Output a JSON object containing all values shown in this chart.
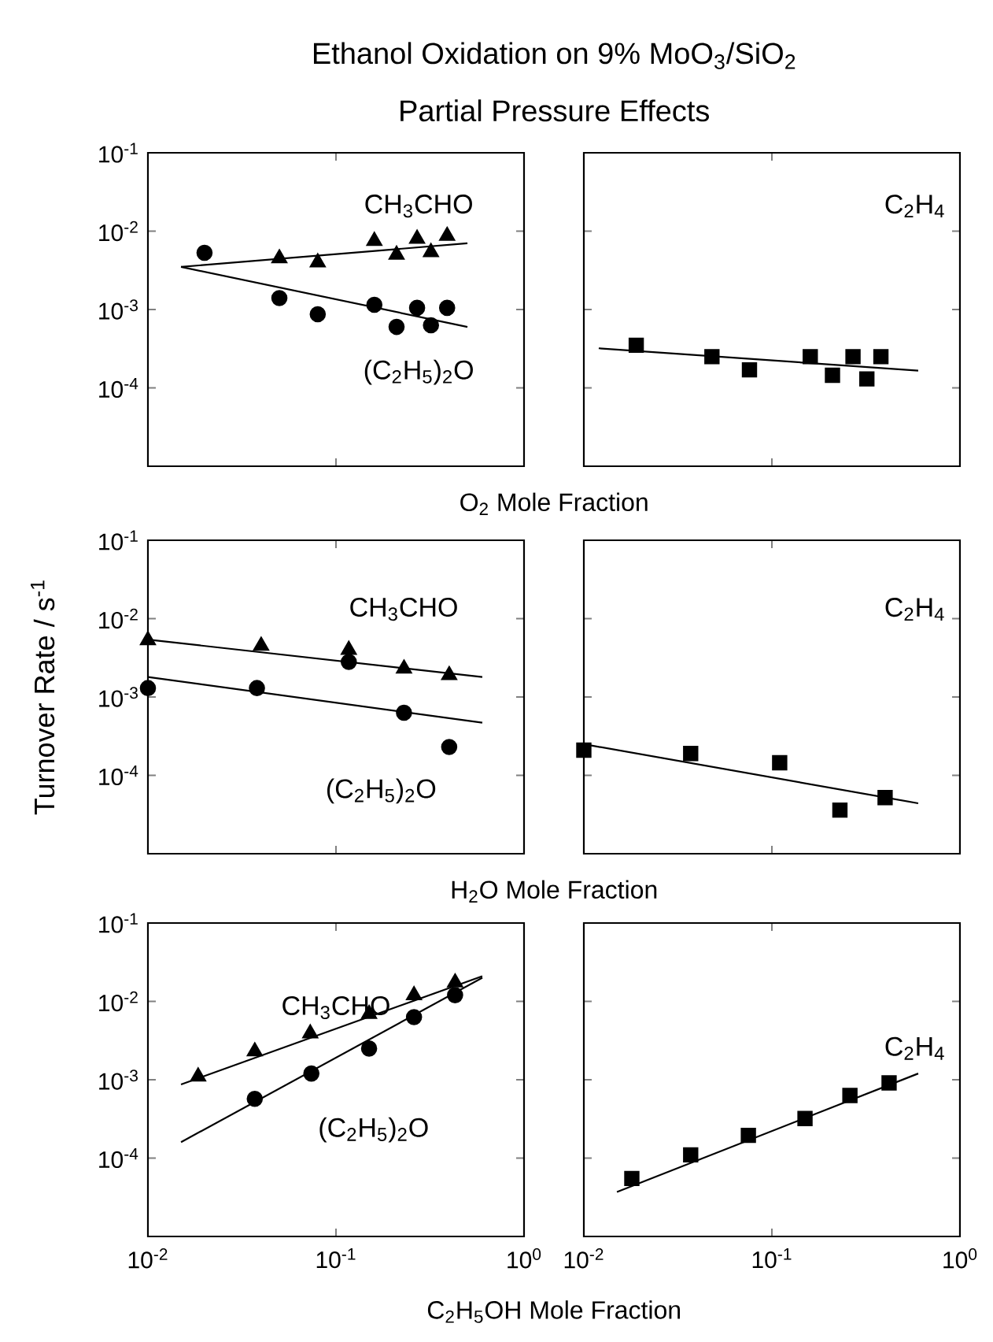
{
  "chart_data": [
    {
      "type": "scatter",
      "title": "Ethanol Oxidation on 9% MoO$_{3}$/SiO$_{2}$",
      "subtitle": "Partial Pressure Effects",
      "xlabel": "O$_{2}$ Mole Fraction",
      "log": "xy",
      "xlim": [
        0.01,
        1
      ],
      "ylim": [
        1e-05,
        0.1
      ],
      "tick_labels": "y",
      "xticks": [
        {
          "value": 0.01,
          "label": null
        },
        {
          "value": 0.1,
          "label": null
        },
        {
          "value": 1,
          "label": null
        }
      ],
      "yticks": [
        {
          "value": 1e-05,
          "label": null
        },
        {
          "value": 0.0001,
          "label": "10$^{-4}$"
        },
        {
          "value": 0.001,
          "label": "10$^{-3}$"
        },
        {
          "value": 0.01,
          "label": "10$^{-2}$"
        },
        {
          "value": 0.1,
          "label": "10$^{-1}$"
        }
      ],
      "series": [
        {
          "name": "CH$_{3}$CHO",
          "marker": "triangle",
          "color": "#000000",
          "x": [
            0.05,
            0.08,
            0.16,
            0.21,
            0.27,
            0.32,
            0.39
          ],
          "values": [
            0.0045,
            0.004,
            0.0075,
            0.005,
            0.008,
            0.0054,
            0.0087
          ]
        },
        {
          "name": "(C$_{2}$H$_{5}$)$_{2}$O",
          "marker": "circle",
          "color": "#000000",
          "x": [
            0.02,
            0.05,
            0.08,
            0.16,
            0.21,
            0.27,
            0.32,
            0.39
          ],
          "values": [
            0.0053,
            0.0014,
            0.00087,
            0.00115,
            0.0006,
            0.00105,
            0.00063,
            0.00105
          ]
        },
        {
          "type": "line",
          "color": "#000000",
          "x": [
            0.015,
            0.5
          ],
          "values": [
            0.0035,
            0.007
          ]
        },
        {
          "type": "line",
          "color": "#000000",
          "x": [
            0.015,
            0.5
          ],
          "values": [
            0.0035,
            0.0006
          ]
        }
      ]
    },
    {
      "type": "scatter",
      "log": "xy",
      "xlim": [
        0.01,
        1
      ],
      "ylim": [
        1e-05,
        0.1
      ],
      "tick_labels": false,
      "xticks": [
        {
          "value": 0.01,
          "label": null
        },
        {
          "value": 0.1,
          "label": null
        },
        {
          "value": 1,
          "label": null
        }
      ],
      "yticks": [
        {
          "value": 1e-05,
          "label": null
        },
        {
          "value": 0.0001,
          "label": null
        },
        {
          "value": 0.001,
          "label": null
        },
        {
          "value": 0.01,
          "label": null
        },
        {
          "value": 0.1,
          "label": null
        }
      ],
      "series": [
        {
          "name": "C$_{2}$H$_{4}$",
          "marker": "square",
          "color": "#000000",
          "x": [
            0.019,
            0.048,
            0.076,
            0.16,
            0.21,
            0.27,
            0.32,
            0.38
          ],
          "values": [
            0.00035,
            0.00025,
            0.00017,
            0.00025,
            0.000145,
            0.00025,
            0.00013,
            0.00025
          ]
        },
        {
          "type": "line",
          "color": "#000000",
          "x": [
            0.012,
            0.6
          ],
          "values": [
            0.00032,
            0.000166
          ]
        }
      ]
    },
    {
      "type": "scatter",
      "xlabel": "H$_{2}$O Mole Fraction",
      "ylabel": "Turnover Rate / s$^{-1}$",
      "log": "xy",
      "xlim": [
        0.01,
        1
      ],
      "ylim": [
        1e-05,
        0.1
      ],
      "tick_labels": "y",
      "xticks": [
        {
          "value": 0.01,
          "label": null
        },
        {
          "value": 0.1,
          "label": null
        },
        {
          "value": 1,
          "label": null
        }
      ],
      "yticks": [
        {
          "value": 1e-05,
          "label": null
        },
        {
          "value": 0.0001,
          "label": "10$^{-4}$"
        },
        {
          "value": 0.001,
          "label": "10$^{-3}$"
        },
        {
          "value": 0.01,
          "label": "10$^{-2}$"
        },
        {
          "value": 0.1,
          "label": "10$^{-1}$"
        }
      ],
      "series": [
        {
          "name": "CH$_{3}$CHO",
          "marker": "triangle",
          "color": "#000000",
          "x": [
            0.01,
            0.04,
            0.117,
            0.23,
            0.4
          ],
          "values": [
            0.0053,
            0.0045,
            0.004,
            0.0023,
            0.0019
          ]
        },
        {
          "name": "(C$_{2}$H$_{5}$)$_{2}$O",
          "marker": "circle",
          "color": "#000000",
          "x": [
            0.01,
            0.038,
            0.117,
            0.23,
            0.4
          ],
          "values": [
            0.0013,
            0.0013,
            0.0028,
            0.00063,
            0.00023
          ]
        },
        {
          "type": "line",
          "color": "#000000",
          "x": [
            0.01,
            0.6
          ],
          "values": [
            0.0054,
            0.0018
          ]
        },
        {
          "type": "line",
          "color": "#000000",
          "x": [
            0.01,
            0.6
          ],
          "values": [
            0.0018,
            0.00047
          ]
        }
      ]
    },
    {
      "type": "scatter",
      "log": "xy",
      "xlim": [
        0.01,
        1
      ],
      "ylim": [
        1e-05,
        0.1
      ],
      "tick_labels": false,
      "xticks": [
        {
          "value": 0.01,
          "label": null
        },
        {
          "value": 0.1,
          "label": null
        },
        {
          "value": 1,
          "label": null
        }
      ],
      "yticks": [
        {
          "value": 1e-05,
          "label": null
        },
        {
          "value": 0.0001,
          "label": null
        },
        {
          "value": 0.001,
          "label": null
        },
        {
          "value": 0.01,
          "label": null
        },
        {
          "value": 0.1,
          "label": null
        }
      ],
      "series": [
        {
          "name": "C$_{2}$H$_{4}$",
          "marker": "square",
          "color": "#000000",
          "x": [
            0.01,
            0.037,
            0.11,
            0.23,
            0.4
          ],
          "values": [
            0.00021,
            0.00019,
            0.000145,
            3.6e-05,
            5.2e-05
          ]
        },
        {
          "type": "line",
          "color": "#000000",
          "x": [
            0.01,
            0.6
          ],
          "values": [
            0.00025,
            4.4e-05
          ]
        }
      ]
    },
    {
      "type": "scatter",
      "xlabel": "C$_{2}$H$_{5}$OH Mole Fraction",
      "log": "xy",
      "xlim": [
        0.01,
        1
      ],
      "ylim": [
        1e-05,
        0.1
      ],
      "xticks": [
        {
          "value": 0.01,
          "label": "10$^{-2}$"
        },
        {
          "value": 0.1,
          "label": "10$^{-1}$"
        },
        {
          "value": 1,
          "label": "10$^{0}$"
        }
      ],
      "yticks": [
        {
          "value": 1e-05,
          "label": null
        },
        {
          "value": 0.0001,
          "label": "10$^{-4}$"
        },
        {
          "value": 0.001,
          "label": "10$^{-3}$"
        },
        {
          "value": 0.01,
          "label": "10$^{-2}$"
        },
        {
          "value": 0.1,
          "label": "10$^{-1}$"
        }
      ],
      "series": [
        {
          "name": "CH$_{3}$CHO",
          "marker": "triangle",
          "color": "#000000",
          "x": [
            0.0185,
            0.037,
            0.073,
            0.15,
            0.26,
            0.43
          ],
          "values": [
            0.0011,
            0.0023,
            0.0039,
            0.0069,
            0.012,
            0.0174
          ]
        },
        {
          "name": "(C$_{2}$H$_{5}$)$_{2}$O",
          "marker": "circle",
          "color": "#000000",
          "x": [
            0.037,
            0.074,
            0.15,
            0.26,
            0.43
          ],
          "values": [
            0.00057,
            0.0012,
            0.0025,
            0.0063,
            0.012
          ]
        },
        {
          "type": "line",
          "color": "#000000",
          "x": [
            0.015,
            0.6
          ],
          "values": [
            0.00087,
            0.021
          ]
        },
        {
          "type": "line",
          "color": "#000000",
          "x": [
            0.015,
            0.6
          ],
          "values": [
            0.00016,
            0.02
          ]
        }
      ]
    },
    {
      "type": "scatter",
      "log": "xy",
      "xlim": [
        0.01,
        1
      ],
      "ylim": [
        1e-05,
        0.1
      ],
      "tick_labels": "x",
      "xticks": [
        {
          "value": 0.01,
          "label": "10$^{-2}$"
        },
        {
          "value": 0.1,
          "label": "10$^{-1}$"
        },
        {
          "value": 1,
          "label": "10$^{0}$"
        }
      ],
      "yticks": [
        {
          "value": 1e-05,
          "label": null
        },
        {
          "value": 0.0001,
          "label": null
        },
        {
          "value": 0.001,
          "label": null
        },
        {
          "value": 0.01,
          "label": null
        },
        {
          "value": 0.1,
          "label": null
        }
      ],
      "series": [
        {
          "name": "C$_{2}$H$_{4}$",
          "marker": "square",
          "color": "#000000",
          "x": [
            0.018,
            0.037,
            0.075,
            0.15,
            0.26,
            0.42
          ],
          "values": [
            5.5e-05,
            0.00011,
            0.000195,
            0.00032,
            0.00063,
            0.00091
          ]
        },
        {
          "type": "line",
          "color": "#000000",
          "x": [
            0.015,
            0.6
          ],
          "values": [
            3.7e-05,
            0.0012
          ]
        }
      ]
    }
  ]
}
